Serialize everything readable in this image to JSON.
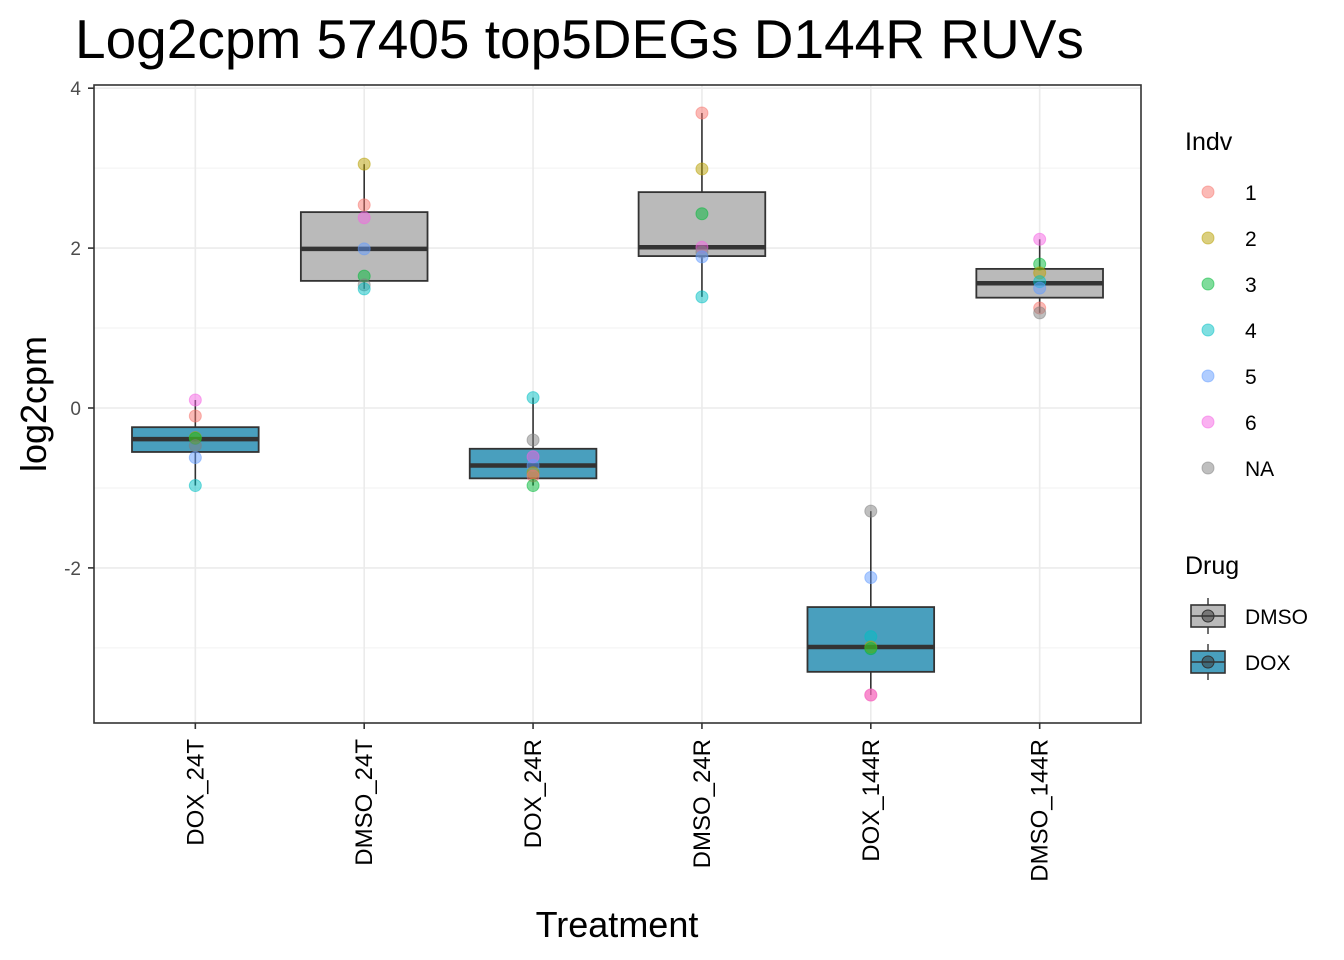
{
  "chart_data": {
    "type": "boxplot",
    "title": "Log2cpm 57405 top5DEGs D144R RUVs",
    "xlabel": "Treatment",
    "ylabel": "log2cpm",
    "ylim": [
      -3.94,
      4.04
    ],
    "yticks": [
      -2,
      0,
      2,
      4
    ],
    "grid": true,
    "categories": [
      "DOX_24T",
      "DMSO_24T",
      "DOX_24R",
      "DMSO_24R",
      "DOX_144R",
      "DMSO_144R"
    ],
    "drug": [
      "DOX",
      "DMSO",
      "DOX",
      "DMSO",
      "DOX",
      "DMSO"
    ],
    "boxes": [
      {
        "category": "DOX_24T",
        "whisker_low": -0.97,
        "q1": -0.55,
        "median": -0.39,
        "q3": -0.24,
        "whisker_high": 0.1
      },
      {
        "category": "DMSO_24T",
        "whisker_low": 1.49,
        "q1": 1.59,
        "median": 1.99,
        "q3": 2.45,
        "whisker_high": 3.05
      },
      {
        "category": "DOX_24R",
        "whisker_low": -0.97,
        "q1": -0.88,
        "median": -0.72,
        "q3": -0.51,
        "whisker_high": 0.13
      },
      {
        "category": "DMSO_24R",
        "whisker_low": 1.39,
        "q1": 1.9,
        "median": 2.01,
        "q3": 2.7,
        "whisker_high": 3.69
      },
      {
        "category": "DOX_144R",
        "whisker_low": -3.59,
        "q1": -3.3,
        "median": -2.99,
        "q3": -2.49,
        "whisker_high": -1.29
      },
      {
        "category": "DMSO_144R",
        "whisker_low": 1.19,
        "q1": 1.38,
        "median": 1.56,
        "q3": 1.74,
        "whisker_high": 2.11
      }
    ],
    "points": [
      {
        "category": "DOX_24T",
        "indv": "6",
        "value": 0.1
      },
      {
        "category": "DOX_24T",
        "indv": "1",
        "value": -0.1
      },
      {
        "category": "DOX_24T",
        "indv": "2",
        "value": -0.37
      },
      {
        "category": "DOX_24T",
        "indv": "3",
        "value": -0.38
      },
      {
        "category": "DOX_24T",
        "indv": "NA",
        "value": -0.47
      },
      {
        "category": "DOX_24T",
        "indv": "5",
        "value": -0.62
      },
      {
        "category": "DOX_24T",
        "indv": "4",
        "value": -0.97
      },
      {
        "category": "DMSO_24T",
        "indv": "2",
        "value": 3.05
      },
      {
        "category": "DMSO_24T",
        "indv": "1",
        "value": 2.54
      },
      {
        "category": "DMSO_24T",
        "indv": "6",
        "value": 2.38
      },
      {
        "category": "DMSO_24T",
        "indv": "5",
        "value": 1.99
      },
      {
        "category": "DMSO_24T",
        "indv": "3",
        "value": 1.65
      },
      {
        "category": "DMSO_24T",
        "indv": "NA",
        "value": 1.54
      },
      {
        "category": "DMSO_24T",
        "indv": "4",
        "value": 1.49
      },
      {
        "category": "DOX_24R",
        "indv": "4",
        "value": 0.13
      },
      {
        "category": "DOX_24R",
        "indv": "NA",
        "value": -0.4
      },
      {
        "category": "DOX_24R",
        "indv": "6",
        "value": -0.61
      },
      {
        "category": "DOX_24R",
        "indv": "5",
        "value": -0.72
      },
      {
        "category": "DOX_24R",
        "indv": "2",
        "value": -0.81
      },
      {
        "category": "DOX_24R",
        "indv": "1",
        "value": -0.85
      },
      {
        "category": "DOX_24R",
        "indv": "3",
        "value": -0.97
      },
      {
        "category": "DMSO_24R",
        "indv": "1",
        "value": 3.69
      },
      {
        "category": "DMSO_24R",
        "indv": "2",
        "value": 2.99
      },
      {
        "category": "DMSO_24R",
        "indv": "3",
        "value": 2.43
      },
      {
        "category": "DMSO_24R",
        "indv": "6",
        "value": 2.01
      },
      {
        "category": "DMSO_24R",
        "indv": "NA",
        "value": 1.95
      },
      {
        "category": "DMSO_24R",
        "indv": "5",
        "value": 1.89
      },
      {
        "category": "DMSO_24R",
        "indv": "4",
        "value": 1.39
      },
      {
        "category": "DOX_144R",
        "indv": "NA",
        "value": -1.29
      },
      {
        "category": "DOX_144R",
        "indv": "5",
        "value": -2.12
      },
      {
        "category": "DOX_144R",
        "indv": "4",
        "value": -2.86
      },
      {
        "category": "DOX_144R",
        "indv": "2",
        "value": -2.99
      },
      {
        "category": "DOX_144R",
        "indv": "3",
        "value": -3.01
      },
      {
        "category": "DOX_144R",
        "indv": "1",
        "value": -3.59
      },
      {
        "category": "DOX_144R",
        "indv": "6",
        "value": -3.59
      },
      {
        "category": "DMSO_144R",
        "indv": "6",
        "value": 2.11
      },
      {
        "category": "DMSO_144R",
        "indv": "3",
        "value": 1.8
      },
      {
        "category": "DMSO_144R",
        "indv": "2",
        "value": 1.69
      },
      {
        "category": "DMSO_144R",
        "indv": "4",
        "value": 1.58
      },
      {
        "category": "DMSO_144R",
        "indv": "5",
        "value": 1.5
      },
      {
        "category": "DMSO_144R",
        "indv": "1",
        "value": 1.25
      },
      {
        "category": "DMSO_144R",
        "indv": "NA",
        "value": 1.19
      }
    ],
    "legends": [
      {
        "title": "Indv",
        "placement": "right",
        "entries": [
          {
            "label": "1",
            "color": "#F8766D"
          },
          {
            "label": "2",
            "color": "#B79F00"
          },
          {
            "label": "3",
            "color": "#00BA38"
          },
          {
            "label": "4",
            "color": "#00BFC4"
          },
          {
            "label": "5",
            "color": "#619CFF"
          },
          {
            "label": "6",
            "color": "#F564E3"
          },
          {
            "label": "NA",
            "color": "#7F7F7F"
          }
        ]
      },
      {
        "title": "Drug",
        "placement": "right",
        "entries": [
          {
            "label": "DMSO",
            "color": "#BABABA"
          },
          {
            "label": "DOX",
            "color": "#499FBE"
          }
        ]
      }
    ]
  }
}
